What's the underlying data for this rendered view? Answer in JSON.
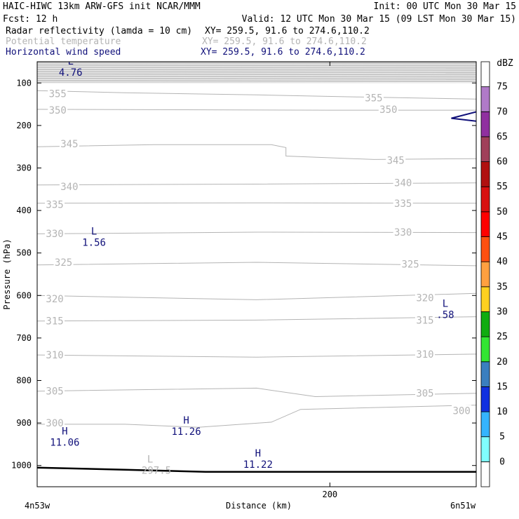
{
  "header": {
    "line1_left": "HAIC-HIWC 13km ARW-GFS init   NCAR/MMM",
    "line1_right": "Init: 00 UTC Mon 30 Mar 15",
    "line2_left": "Fcst:    12 h",
    "line2_right": "Valid: 12 UTC Mon 30 Mar 15 (09 LST Mon 30 Mar 15)",
    "fields": [
      {
        "name": "Radar reflectivity (lamda = 10 cm)",
        "xy": "XY= 259.5, 91.6 to 274.6,110.2",
        "color": "#000000"
      },
      {
        "name": "Potential temperature",
        "xy": "XY= 259.5, 91.6 to 274.6,110.2",
        "color": "#b4b4b4"
      },
      {
        "name": "Horizontal wind speed",
        "xy": "XY= 259.5, 91.6 to 274.6,110.2",
        "color": "#10107a"
      }
    ]
  },
  "colors": {
    "theta_contour": "#b4b4b4",
    "wind_contour": "#10107a",
    "terrain": "#000000"
  },
  "chart_data": {
    "type": "contour",
    "xlabel": "Distance (km)",
    "ylabel": "Pressure (hPa)",
    "xlim": [
      0,
      300
    ],
    "ylim": [
      50,
      1050
    ],
    "x_ticks": [
      200
    ],
    "y_ticks": [
      100,
      200,
      300,
      400,
      500,
      600,
      700,
      800,
      900,
      1000
    ],
    "x_left_label": "4n53w",
    "x_right_label": "6n51w",
    "theta_contours": [
      {
        "value": 355,
        "points": [
          [
            0,
            118
          ],
          [
            60,
            123
          ],
          [
            150,
            128
          ],
          [
            220,
            133
          ],
          [
            300,
            138
          ]
        ],
        "labels": [
          [
            14,
            125
          ],
          [
            230,
            135
          ]
        ]
      },
      {
        "value": 350,
        "points": [
          [
            0,
            162
          ],
          [
            100,
            163
          ],
          [
            200,
            164
          ],
          [
            300,
            164
          ]
        ],
        "labels": [
          [
            14,
            164
          ],
          [
            240,
            162
          ]
        ]
      },
      {
        "value": 345,
        "points": [
          [
            0,
            250
          ],
          [
            80,
            245
          ],
          [
            160,
            245
          ],
          [
            170,
            252
          ],
          [
            170,
            272
          ],
          [
            230,
            280
          ],
          [
            300,
            278
          ]
        ],
        "labels": [
          [
            22,
            243
          ],
          [
            245,
            282
          ]
        ]
      },
      {
        "value": 340,
        "points": [
          [
            0,
            340
          ],
          [
            150,
            338
          ],
          [
            300,
            335
          ]
        ],
        "labels": [
          [
            22,
            344
          ],
          [
            250,
            335
          ]
        ]
      },
      {
        "value": 335,
        "points": [
          [
            0,
            383
          ],
          [
            150,
            382
          ],
          [
            300,
            383
          ]
        ],
        "labels": [
          [
            12,
            386
          ],
          [
            250,
            383
          ]
        ]
      },
      {
        "value": 330,
        "points": [
          [
            0,
            455
          ],
          [
            150,
            451
          ],
          [
            300,
            452
          ]
        ],
        "labels": [
          [
            12,
            454
          ],
          [
            250,
            451
          ]
        ]
      },
      {
        "value": 325,
        "points": [
          [
            0,
            528
          ],
          [
            150,
            522
          ],
          [
            300,
            530
          ]
        ],
        "labels": [
          [
            18,
            522
          ],
          [
            255,
            526
          ]
        ]
      },
      {
        "value": 320,
        "points": [
          [
            0,
            600
          ],
          [
            150,
            610
          ],
          [
            300,
            595
          ]
        ],
        "labels": [
          [
            12,
            608
          ],
          [
            265,
            605
          ]
        ]
      },
      {
        "value": 315,
        "points": [
          [
            0,
            660
          ],
          [
            150,
            658
          ],
          [
            300,
            650
          ]
        ],
        "labels": [
          [
            12,
            660
          ],
          [
            265,
            658
          ]
        ]
      },
      {
        "value": 310,
        "points": [
          [
            0,
            740
          ],
          [
            150,
            745
          ],
          [
            300,
            738
          ]
        ],
        "labels": [
          [
            12,
            740
          ],
          [
            265,
            738
          ]
        ]
      },
      {
        "value": 305,
        "points": [
          [
            0,
            825
          ],
          [
            150,
            818
          ],
          [
            190,
            838
          ],
          [
            300,
            830
          ]
        ],
        "labels": [
          [
            12,
            825
          ],
          [
            265,
            830
          ]
        ]
      },
      {
        "value": 300,
        "points": [
          [
            0,
            903
          ],
          [
            60,
            903
          ],
          [
            110,
            910
          ],
          [
            160,
            898
          ],
          [
            180,
            868
          ],
          [
            300,
            858
          ]
        ],
        "labels": [
          [
            12,
            900
          ],
          [
            290,
            871
          ]
        ]
      }
    ],
    "wind_jet": [
      [
        300,
        168
      ],
      [
        283,
        183
      ],
      [
        300,
        190
      ]
    ],
    "terrain": [
      [
        0,
        1005
      ],
      [
        60,
        1010
      ],
      [
        115,
        1015
      ],
      [
        300,
        1015
      ]
    ],
    "shaded_band": [
      50,
      100
    ],
    "wind_extrema": [
      {
        "kind": "L",
        "value": "4.76",
        "x": 20,
        "p": 70
      },
      {
        "kind": "L",
        "value": "1.56",
        "x": 36,
        "p": 470
      },
      {
        "kind": "L",
        "value": ".58",
        "x": 276,
        "p": 640
      },
      {
        "kind": "H",
        "value": "11.06",
        "x": 16,
        "p": 940
      },
      {
        "kind": "H",
        "value": "11.26",
        "x": 99,
        "p": 915
      },
      {
        "kind": "H",
        "value": "11.22",
        "x": 148,
        "p": 992
      }
    ],
    "theta_extrema": [
      {
        "kind": "L",
        "value": "297.5",
        "x": 80,
        "p": 1000
      }
    ],
    "colorbar": {
      "title": "dBZ",
      "labels": [
        "0",
        "5",
        "10",
        "15",
        "20",
        "25",
        "30",
        "35",
        "40",
        "45",
        "50",
        "55",
        "60",
        "65",
        "70",
        "75"
      ],
      "colors": [
        "#ffffff",
        "#80ffff",
        "#35b4ff",
        "#1030e0",
        "#3a7fbf",
        "#32e632",
        "#10ac10",
        "#ffd020",
        "#ffa040",
        "#ff5010",
        "#ff0000",
        "#d81010",
        "#b01010",
        "#a0405a",
        "#9030a0",
        "#b07ac8",
        "#ffffff"
      ]
    }
  }
}
